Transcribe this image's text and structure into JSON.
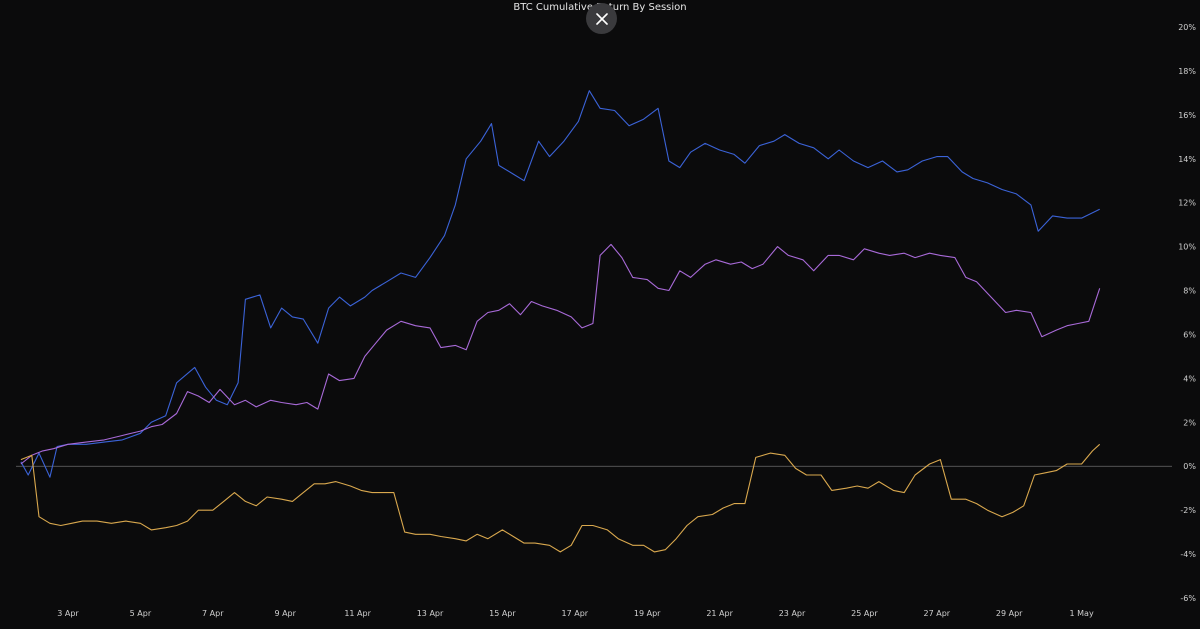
{
  "chart_data": {
    "type": "line",
    "title": "BTC Cumulative Return By Session",
    "xlabel": "",
    "ylabel": "",
    "x_range": [
      1.7,
      2.1
    ],
    "ylim": [
      -6,
      20
    ],
    "y_ticks": [
      -6,
      -4,
      -2,
      0,
      2,
      4,
      6,
      8,
      10,
      12,
      14,
      16,
      18,
      20
    ],
    "y_tick_labels": [
      "-6%",
      "-4%",
      "-2%",
      "0%",
      "2%",
      "4%",
      "6%",
      "8%",
      "10%",
      "12%",
      "14%",
      "16%",
      "18%",
      "20%"
    ],
    "x_ticks": [
      3,
      5,
      7,
      9,
      11,
      13,
      15,
      17,
      19,
      21,
      23,
      25,
      27,
      29,
      31
    ],
    "x_tick_labels": [
      "3 Apr",
      "5 Apr",
      "7 Apr",
      "9 Apr",
      "11 Apr",
      "13 Apr",
      "15 Apr",
      "17 Apr",
      "19 Apr",
      "21 Apr",
      "23 Apr",
      "25 Apr",
      "27 Apr",
      "29 Apr",
      "1 May"
    ],
    "zero_line": true,
    "grid": false,
    "series": [
      {
        "color": "#3b63d8",
        "points": [
          [
            1.7,
            0.2
          ],
          [
            1.9,
            -0.4
          ],
          [
            2.2,
            0.6
          ],
          [
            2.5,
            -0.5
          ],
          [
            2.7,
            0.9
          ],
          [
            3.0,
            1.0
          ],
          [
            3.5,
            1.0
          ],
          [
            4.0,
            1.1
          ],
          [
            4.5,
            1.2
          ],
          [
            5.0,
            1.5
          ],
          [
            5.3,
            2.0
          ],
          [
            5.7,
            2.3
          ],
          [
            6.0,
            3.8
          ],
          [
            6.5,
            4.5
          ],
          [
            6.8,
            3.6
          ],
          [
            7.1,
            3.0
          ],
          [
            7.4,
            2.8
          ],
          [
            7.7,
            3.8
          ],
          [
            7.9,
            7.6
          ],
          [
            8.3,
            7.8
          ],
          [
            8.6,
            6.3
          ],
          [
            8.9,
            7.2
          ],
          [
            9.2,
            6.8
          ],
          [
            9.5,
            6.7
          ],
          [
            9.9,
            5.6
          ],
          [
            10.2,
            7.2
          ],
          [
            10.5,
            7.7
          ],
          [
            10.8,
            7.3
          ],
          [
            11.2,
            7.7
          ],
          [
            11.4,
            8.0
          ],
          [
            11.8,
            8.4
          ],
          [
            12.2,
            8.8
          ],
          [
            12.6,
            8.6
          ],
          [
            13.0,
            9.5
          ],
          [
            13.4,
            10.5
          ],
          [
            13.7,
            11.9
          ],
          [
            14.0,
            14.0
          ],
          [
            14.4,
            14.8
          ],
          [
            14.7,
            15.6
          ],
          [
            14.9,
            13.7
          ],
          [
            15.3,
            13.3
          ],
          [
            15.6,
            13.0
          ],
          [
            16.0,
            14.8
          ],
          [
            16.3,
            14.1
          ],
          [
            16.7,
            14.8
          ],
          [
            17.1,
            15.7
          ],
          [
            17.4,
            17.1
          ],
          [
            17.7,
            16.3
          ],
          [
            18.1,
            16.2
          ],
          [
            18.5,
            15.5
          ],
          [
            18.9,
            15.8
          ],
          [
            19.3,
            16.3
          ],
          [
            19.6,
            13.9
          ],
          [
            19.9,
            13.6
          ],
          [
            20.2,
            14.3
          ],
          [
            20.6,
            14.7
          ],
          [
            21.0,
            14.4
          ],
          [
            21.4,
            14.2
          ],
          [
            21.7,
            13.8
          ],
          [
            22.1,
            14.6
          ],
          [
            22.5,
            14.8
          ],
          [
            22.8,
            15.1
          ],
          [
            23.2,
            14.7
          ],
          [
            23.6,
            14.5
          ],
          [
            24.0,
            14.0
          ],
          [
            24.3,
            14.4
          ],
          [
            24.7,
            13.9
          ],
          [
            25.1,
            13.6
          ],
          [
            25.5,
            13.9
          ],
          [
            25.9,
            13.4
          ],
          [
            26.2,
            13.5
          ],
          [
            26.6,
            13.9
          ],
          [
            27.0,
            14.1
          ],
          [
            27.3,
            14.1
          ],
          [
            27.7,
            13.4
          ],
          [
            28.0,
            13.1
          ],
          [
            28.4,
            12.9
          ],
          [
            28.8,
            12.6
          ],
          [
            29.2,
            12.4
          ],
          [
            29.6,
            11.9
          ],
          [
            29.8,
            10.7
          ],
          [
            30.2,
            11.4
          ],
          [
            30.6,
            11.3
          ],
          [
            31.0,
            11.3
          ],
          [
            31.5,
            11.7
          ]
        ]
      },
      {
        "color": "#a86ad8",
        "points": [
          [
            1.7,
            0.1
          ],
          [
            2.0,
            0.5
          ],
          [
            2.3,
            0.7
          ],
          [
            2.6,
            0.8
          ],
          [
            3.0,
            1.0
          ],
          [
            3.5,
            1.1
          ],
          [
            4.0,
            1.2
          ],
          [
            4.5,
            1.4
          ],
          [
            5.0,
            1.6
          ],
          [
            5.3,
            1.8
          ],
          [
            5.6,
            1.9
          ],
          [
            6.0,
            2.4
          ],
          [
            6.3,
            3.4
          ],
          [
            6.6,
            3.2
          ],
          [
            6.9,
            2.9
          ],
          [
            7.2,
            3.5
          ],
          [
            7.6,
            2.8
          ],
          [
            7.9,
            3.0
          ],
          [
            8.2,
            2.7
          ],
          [
            8.6,
            3.0
          ],
          [
            8.9,
            2.9
          ],
          [
            9.3,
            2.8
          ],
          [
            9.6,
            2.9
          ],
          [
            9.9,
            2.6
          ],
          [
            10.2,
            4.2
          ],
          [
            10.5,
            3.9
          ],
          [
            10.9,
            4.0
          ],
          [
            11.2,
            5.0
          ],
          [
            11.5,
            5.6
          ],
          [
            11.8,
            6.2
          ],
          [
            12.2,
            6.6
          ],
          [
            12.6,
            6.4
          ],
          [
            13.0,
            6.3
          ],
          [
            13.3,
            5.4
          ],
          [
            13.7,
            5.5
          ],
          [
            14.0,
            5.3
          ],
          [
            14.3,
            6.6
          ],
          [
            14.6,
            7.0
          ],
          [
            14.9,
            7.1
          ],
          [
            15.2,
            7.4
          ],
          [
            15.5,
            6.9
          ],
          [
            15.8,
            7.5
          ],
          [
            16.1,
            7.3
          ],
          [
            16.5,
            7.1
          ],
          [
            16.9,
            6.8
          ],
          [
            17.2,
            6.3
          ],
          [
            17.5,
            6.5
          ],
          [
            17.7,
            9.6
          ],
          [
            18.0,
            10.1
          ],
          [
            18.3,
            9.5
          ],
          [
            18.6,
            8.6
          ],
          [
            19.0,
            8.5
          ],
          [
            19.3,
            8.1
          ],
          [
            19.6,
            8.0
          ],
          [
            19.9,
            8.9
          ],
          [
            20.2,
            8.6
          ],
          [
            20.6,
            9.2
          ],
          [
            20.9,
            9.4
          ],
          [
            21.3,
            9.2
          ],
          [
            21.6,
            9.3
          ],
          [
            21.9,
            9.0
          ],
          [
            22.2,
            9.2
          ],
          [
            22.6,
            10.0
          ],
          [
            22.9,
            9.6
          ],
          [
            23.3,
            9.4
          ],
          [
            23.6,
            8.9
          ],
          [
            24.0,
            9.6
          ],
          [
            24.3,
            9.6
          ],
          [
            24.7,
            9.4
          ],
          [
            25.0,
            9.9
          ],
          [
            25.4,
            9.7
          ],
          [
            25.7,
            9.6
          ],
          [
            26.1,
            9.7
          ],
          [
            26.4,
            9.5
          ],
          [
            26.8,
            9.7
          ],
          [
            27.1,
            9.6
          ],
          [
            27.5,
            9.5
          ],
          [
            27.8,
            8.6
          ],
          [
            28.1,
            8.4
          ],
          [
            28.5,
            7.7
          ],
          [
            28.9,
            7.0
          ],
          [
            29.2,
            7.1
          ],
          [
            29.6,
            7.0
          ],
          [
            29.9,
            5.9
          ],
          [
            30.3,
            6.2
          ],
          [
            30.6,
            6.4
          ],
          [
            30.9,
            6.5
          ],
          [
            31.2,
            6.6
          ],
          [
            31.5,
            8.1
          ]
        ]
      },
      {
        "color": "#d9a84e",
        "points": [
          [
            1.7,
            0.3
          ],
          [
            2.0,
            0.5
          ],
          [
            2.2,
            -2.3
          ],
          [
            2.5,
            -2.6
          ],
          [
            2.8,
            -2.7
          ],
          [
            3.1,
            -2.6
          ],
          [
            3.4,
            -2.5
          ],
          [
            3.8,
            -2.5
          ],
          [
            4.2,
            -2.6
          ],
          [
            4.6,
            -2.5
          ],
          [
            5.0,
            -2.6
          ],
          [
            5.3,
            -2.9
          ],
          [
            5.7,
            -2.8
          ],
          [
            6.0,
            -2.7
          ],
          [
            6.3,
            -2.5
          ],
          [
            6.6,
            -2.0
          ],
          [
            7.0,
            -2.0
          ],
          [
            7.3,
            -1.6
          ],
          [
            7.6,
            -1.2
          ],
          [
            7.9,
            -1.6
          ],
          [
            8.2,
            -1.8
          ],
          [
            8.5,
            -1.4
          ],
          [
            8.9,
            -1.5
          ],
          [
            9.2,
            -1.6
          ],
          [
            9.5,
            -1.2
          ],
          [
            9.8,
            -0.8
          ],
          [
            10.1,
            -0.8
          ],
          [
            10.4,
            -0.7
          ],
          [
            10.8,
            -0.9
          ],
          [
            11.1,
            -1.1
          ],
          [
            11.4,
            -1.2
          ],
          [
            11.7,
            -1.2
          ],
          [
            12.0,
            -1.2
          ],
          [
            12.3,
            -3.0
          ],
          [
            12.6,
            -3.1
          ],
          [
            13.0,
            -3.1
          ],
          [
            13.3,
            -3.2
          ],
          [
            13.7,
            -3.3
          ],
          [
            14.0,
            -3.4
          ],
          [
            14.3,
            -3.1
          ],
          [
            14.6,
            -3.3
          ],
          [
            15.0,
            -2.9
          ],
          [
            15.3,
            -3.2
          ],
          [
            15.6,
            -3.5
          ],
          [
            15.9,
            -3.5
          ],
          [
            16.3,
            -3.6
          ],
          [
            16.6,
            -3.9
          ],
          [
            16.9,
            -3.6
          ],
          [
            17.2,
            -2.7
          ],
          [
            17.5,
            -2.7
          ],
          [
            17.9,
            -2.9
          ],
          [
            18.2,
            -3.3
          ],
          [
            18.6,
            -3.6
          ],
          [
            18.9,
            -3.6
          ],
          [
            19.2,
            -3.9
          ],
          [
            19.5,
            -3.8
          ],
          [
            19.8,
            -3.3
          ],
          [
            20.1,
            -2.7
          ],
          [
            20.4,
            -2.3
          ],
          [
            20.8,
            -2.2
          ],
          [
            21.1,
            -1.9
          ],
          [
            21.4,
            -1.7
          ],
          [
            21.7,
            -1.7
          ],
          [
            22.0,
            0.4
          ],
          [
            22.4,
            0.6
          ],
          [
            22.8,
            0.5
          ],
          [
            23.1,
            -0.1
          ],
          [
            23.4,
            -0.4
          ],
          [
            23.8,
            -0.4
          ],
          [
            24.1,
            -1.1
          ],
          [
            24.5,
            -1.0
          ],
          [
            24.8,
            -0.9
          ],
          [
            25.1,
            -1.0
          ],
          [
            25.4,
            -0.7
          ],
          [
            25.8,
            -1.1
          ],
          [
            26.1,
            -1.2
          ],
          [
            26.4,
            -0.4
          ],
          [
            26.8,
            0.1
          ],
          [
            27.1,
            0.3
          ],
          [
            27.4,
            -1.5
          ],
          [
            27.8,
            -1.5
          ],
          [
            28.1,
            -1.7
          ],
          [
            28.4,
            -2.0
          ],
          [
            28.8,
            -2.3
          ],
          [
            29.1,
            -2.1
          ],
          [
            29.4,
            -1.8
          ],
          [
            29.7,
            -0.4
          ],
          [
            30.0,
            -0.3
          ],
          [
            30.3,
            -0.2
          ],
          [
            30.6,
            0.1
          ],
          [
            31.0,
            0.1
          ],
          [
            31.3,
            0.7
          ],
          [
            31.5,
            1.0
          ]
        ]
      }
    ]
  },
  "close_button": {
    "icon": "close-icon",
    "background": "#3a3a3d"
  }
}
